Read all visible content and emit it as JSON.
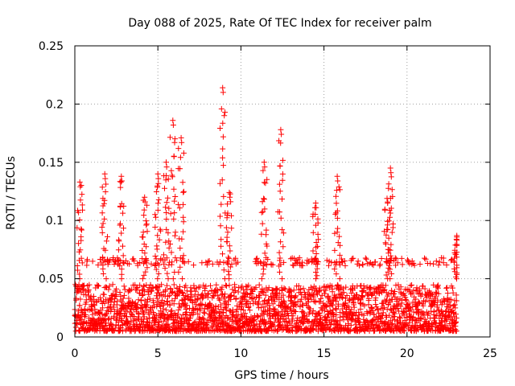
{
  "chart_data": {
    "type": "scatter",
    "title": "Day 088 of 2025, Rate Of TEC Index for receiver palm",
    "xlabel": "GPS time / hours",
    "ylabel": "ROTI / TECUs",
    "xlim": [
      0,
      25
    ],
    "ylim": [
      0,
      0.25
    ],
    "x_ticks": [
      0,
      5,
      10,
      15,
      20,
      25
    ],
    "x_tick_labels": [
      "0",
      "5",
      "10",
      "15",
      "20",
      "25"
    ],
    "y_ticks": [
      0,
      0.05,
      0.1,
      0.15,
      0.2,
      0.25
    ],
    "y_tick_labels": [
      "0",
      "0.05",
      "0.1",
      "0.15",
      "0.2",
      "0.25"
    ],
    "grid": true,
    "marker": "plus",
    "series": [
      {
        "name": "ROTI",
        "color": "#ff0000",
        "data_span_hours": [
          0,
          23
        ],
        "baseline_range": [
          0.005,
          0.05
        ],
        "peaks": [
          {
            "x": 0.3,
            "y": 0.133
          },
          {
            "x": 1.8,
            "y": 0.14
          },
          {
            "x": 2.8,
            "y": 0.138
          },
          {
            "x": 4.2,
            "y": 0.12
          },
          {
            "x": 5.0,
            "y": 0.14
          },
          {
            "x": 5.5,
            "y": 0.15
          },
          {
            "x": 5.9,
            "y": 0.186
          },
          {
            "x": 6.4,
            "y": 0.171
          },
          {
            "x": 8.9,
            "y": 0.214
          },
          {
            "x": 9.3,
            "y": 0.124
          },
          {
            "x": 11.4,
            "y": 0.15
          },
          {
            "x": 12.4,
            "y": 0.178
          },
          {
            "x": 14.5,
            "y": 0.115
          },
          {
            "x": 15.8,
            "y": 0.138
          },
          {
            "x": 18.8,
            "y": 0.119
          },
          {
            "x": 19.0,
            "y": 0.145
          },
          {
            "x": 23.0,
            "y": 0.087
          }
        ]
      }
    ]
  }
}
